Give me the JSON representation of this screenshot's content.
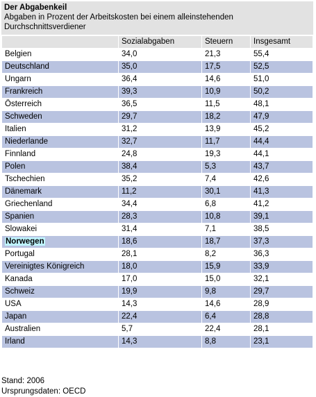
{
  "header": {
    "title": "Der Abgabenkeil",
    "subtitle_lines": [
      "Abgaben in Prozent der Arbeitskosten bei einem alleinstehenden",
      "Durchschnittsverdiener"
    ]
  },
  "table": {
    "columns": [
      "Sozialabgaben",
      "Steuern",
      "Insgesamt"
    ],
    "rows": [
      [
        "Belgien",
        "34,0",
        "21,3",
        "55,4"
      ],
      [
        "Deutschland",
        "35,0",
        "17,5",
        "52,5"
      ],
      [
        "Ungarn",
        "36,4",
        "14,6",
        "51,0"
      ],
      [
        "Frankreich",
        "39,3",
        "10,9",
        "50,2"
      ],
      [
        "Österreich",
        "36,5",
        "11,5",
        "48,1"
      ],
      [
        "Schweden",
        "29,7",
        "18,2",
        "47,9"
      ],
      [
        "Italien",
        "31,2",
        "13,9",
        "45,2"
      ],
      [
        "Niederlande",
        "32,7",
        "11,7",
        "44,4"
      ],
      [
        "Finnland",
        "24,8",
        "19,3",
        "44,1"
      ],
      [
        "Polen",
        "38,4",
        "5,3",
        "43,7"
      ],
      [
        "Tschechien",
        "35,2",
        "7,4",
        "42,6"
      ],
      [
        "Dänemark",
        "11,2",
        "30,1",
        "41,3"
      ],
      [
        "Griechenland",
        "34,4",
        "6,8",
        "41,2"
      ],
      [
        "Spanien",
        "28,3",
        "10,8",
        "39,1"
      ],
      [
        "Slowakei",
        "31,4",
        "7,1",
        "38,5"
      ],
      [
        "Norwegen",
        "18,6",
        "18,7",
        "37,3"
      ],
      [
        "Portugal",
        "28,1",
        "8,2",
        "36,3"
      ],
      [
        "Vereinigtes Königreich",
        "18,0",
        "15,9",
        "33,9"
      ],
      [
        "Kanada",
        "17,0",
        "15,0",
        "32,1"
      ],
      [
        "Schweiz",
        "19,9",
        "9,8",
        "29,7"
      ],
      [
        "USA",
        "14,3",
        "14,6",
        "28,9"
      ],
      [
        "Japan",
        "22,4",
        "6,4",
        "28,8"
      ],
      [
        "Australien",
        "5,7",
        "22,4",
        "28,1"
      ],
      [
        "Irland",
        "14,3",
        "8,8",
        "23,1"
      ]
    ]
  },
  "footer": {
    "lines": [
      "Stand: 2006",
      "Ursprungsdaten: OECD"
    ]
  }
}
